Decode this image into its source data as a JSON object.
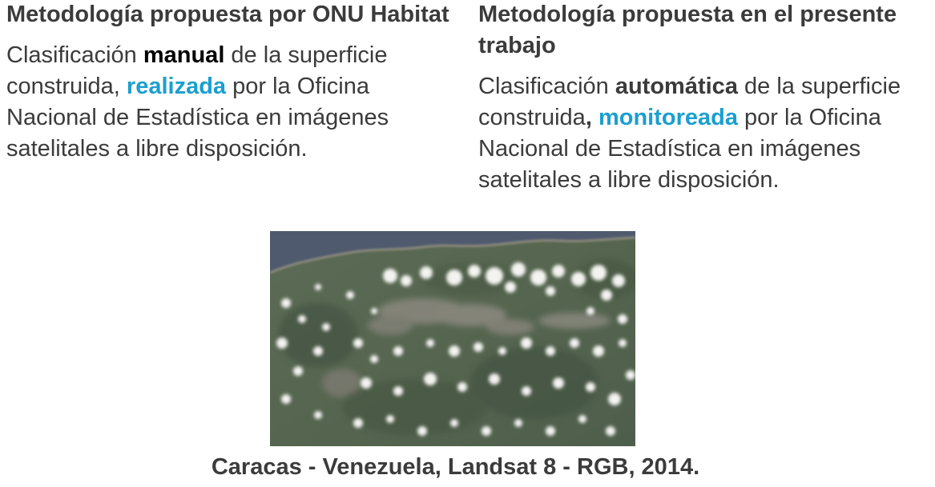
{
  "colors": {
    "text": "#3b3b3b",
    "emphasis": "#000000",
    "accent": "#1a9fd0"
  },
  "left": {
    "title": "Metodología propuesta por ONU Habitat",
    "body": {
      "p1": "Clasificación ",
      "em": "manual",
      "p2": " de la superficie construida, ",
      "accent": "realizada",
      "p3": " por la Oficina Nacional de Estadística en imágenes satelitales a libre disposición."
    }
  },
  "right": {
    "title": "Metodología propuesta en el presente trabajo",
    "body": {
      "p1": "Clasificación ",
      "em": "automática",
      "p2": " de la superficie construida",
      "comma": ",",
      "space": " ",
      "accent": "monitoreada",
      "p3": " por la Oficina Nacional de Estadística en imágenes satelitales a libre disposición."
    }
  },
  "caption": "Caracas - Venezuela, Landsat 8 - RGB, 2014."
}
